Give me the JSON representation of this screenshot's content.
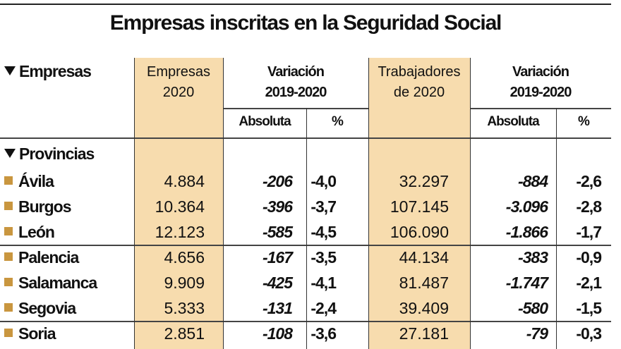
{
  "title": "Empresas inscritas en la Seguridad Social",
  "header": {
    "row_label": "Empresas",
    "col_empresas": [
      "Empresas",
      "2020"
    ],
    "col_var1": [
      "Variación",
      "2019-2020"
    ],
    "col_trabajadores": [
      "Trabajadores",
      "de 2020"
    ],
    "col_var2": [
      "Variación",
      "2019-2020"
    ],
    "sub_absoluta": "Absoluta",
    "sub_pct": "%"
  },
  "section_label": "Provincias",
  "rows": [
    {
      "province": "Ávila",
      "empresas": "4.884",
      "var_abs": "-206",
      "var_pct": "-4,0",
      "trabajadores": "32.297",
      "trab_abs": "-884",
      "trab_pct": "-2,6"
    },
    {
      "province": "Burgos",
      "empresas": "10.364",
      "var_abs": "-396",
      "var_pct": "-3,7",
      "trabajadores": "107.145",
      "trab_abs": "-3.096",
      "trab_pct": "-2,8"
    },
    {
      "province": "León",
      "empresas": "12.123",
      "var_abs": "-585",
      "var_pct": "-4,5",
      "trabajadores": "106.090",
      "trab_abs": "-1.866",
      "trab_pct": "-1,7"
    },
    {
      "province": "Palencia",
      "empresas": "4.656",
      "var_abs": "-167",
      "var_pct": "-3,5",
      "trabajadores": "44.134",
      "trab_abs": "-383",
      "trab_pct": "-0,9"
    },
    {
      "province": "Salamanca",
      "empresas": "9.909",
      "var_abs": "-425",
      "var_pct": "-4,1",
      "trabajadores": "81.487",
      "trab_abs": "-1.747",
      "trab_pct": "-2,1"
    },
    {
      "province": "Segovia",
      "empresas": "5.333",
      "var_abs": "-131",
      "var_pct": "-2,4",
      "trabajadores": "39.409",
      "trab_abs": "-580",
      "trab_pct": "-1,5"
    },
    {
      "province": "Soria",
      "empresas": "2.851",
      "var_abs": "-108",
      "var_pct": "-3,6",
      "trabajadores": "27.181",
      "trab_abs": "-79",
      "trab_pct": "-0,3"
    }
  ],
  "colors": {
    "band": "#f7dcae",
    "bullet": "#c9963f"
  }
}
